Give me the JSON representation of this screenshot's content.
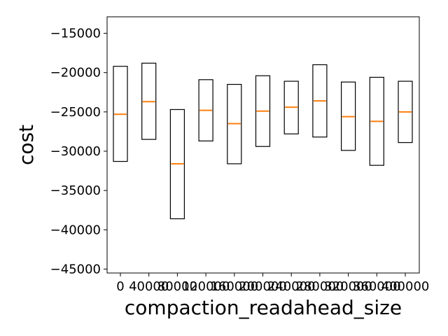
{
  "chart_data": {
    "type": "box",
    "title": "",
    "xlabel": "compaction_readahead_size",
    "ylabel": "cost",
    "ylim": [
      -45500,
      -12900
    ],
    "y_ticks": [
      -45000,
      -40000,
      -35000,
      -30000,
      -25000,
      -20000,
      -15000
    ],
    "y_tick_labels": [
      "−45000",
      "−40000",
      "−35000",
      "−30000",
      "−25000",
      "−20000",
      "−15000"
    ],
    "categories": [
      "0",
      "40000",
      "80000",
      "120000",
      "160000",
      "200000",
      "240000",
      "280000",
      "320000",
      "360000",
      "400000"
    ],
    "boxes": [
      {
        "category": "0",
        "q1": -31300,
        "median": -25300,
        "q3": -19200
      },
      {
        "category": "40000",
        "q1": -28500,
        "median": -23700,
        "q3": -18800
      },
      {
        "category": "80000",
        "q1": -38600,
        "median": -31600,
        "q3": -24700
      },
      {
        "category": "120000",
        "q1": -28700,
        "median": -24800,
        "q3": -20900
      },
      {
        "category": "160000",
        "q1": -31600,
        "median": -26500,
        "q3": -21500
      },
      {
        "category": "200000",
        "q1": -29400,
        "median": -24900,
        "q3": -20400
      },
      {
        "category": "240000",
        "q1": -27800,
        "median": -24400,
        "q3": -21100
      },
      {
        "category": "280000",
        "q1": -28200,
        "median": -23600,
        "q3": -19000
      },
      {
        "category": "320000",
        "q1": -29900,
        "median": -25600,
        "q3": -21200
      },
      {
        "category": "360000",
        "q1": -31800,
        "median": -26200,
        "q3": -20600
      },
      {
        "category": "400000",
        "q1": -28900,
        "median": -25000,
        "q3": -21100
      }
    ],
    "grid": false,
    "legend": "none",
    "colors": {
      "box": "#000000",
      "median": "#ff7f0e",
      "axes": "#000000"
    }
  }
}
